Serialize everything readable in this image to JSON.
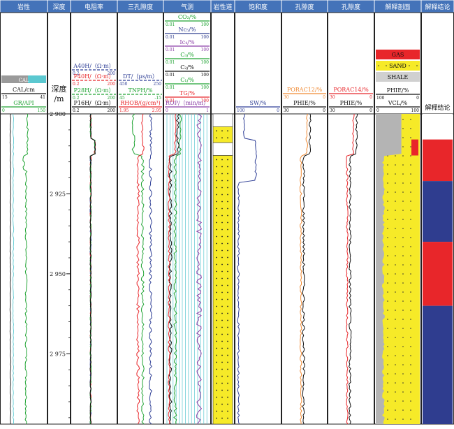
{
  "columns": [
    {
      "id": "lith",
      "title": "岩性"
    },
    {
      "id": "depth",
      "title": "深度"
    },
    {
      "id": "res",
      "title": "电阻率"
    },
    {
      "id": "por3",
      "title": "三孔隙度"
    },
    {
      "id": "gas",
      "title": "气测"
    },
    {
      "id": "lithtrack",
      "title": "岩性道"
    },
    {
      "id": "sat",
      "title": "饱和度"
    },
    {
      "id": "poro1",
      "title": "孔隙度"
    },
    {
      "id": "poro2",
      "title": "孔隙度"
    },
    {
      "id": "profile",
      "title": "解释剖面"
    },
    {
      "id": "concl",
      "title": "解释结论"
    }
  ],
  "depth_track": {
    "label_line1": "深度",
    "label_line2": "/m",
    "ticks": [
      "2 900",
      "2 925",
      "2 950",
      "2 975"
    ]
  },
  "lith_header": {
    "cal_box": "CAL",
    "cal_curve": {
      "name": "CAL/cm",
      "min": "15",
      "max": "41"
    },
    "gr_curve": {
      "name": "GR/API",
      "min": "0",
      "max": "150"
    }
  },
  "res_header": [
    {
      "name": "A40H/（Ω·m）",
      "min": "0.2",
      "max": "200"
    },
    {
      "name": "P40H/（Ω·m）",
      "min": "0.2",
      "max": "200"
    },
    {
      "name": "P28H/（Ω·m）",
      "min": "0.2",
      "max": "200"
    },
    {
      "name": "P16H/（Ω·m）",
      "min": "0.2",
      "max": "200"
    }
  ],
  "por3_header": [
    {
      "name": "DT/（μs/m）",
      "min": "450",
      "max": "250"
    },
    {
      "name": "TNPH/%",
      "min": "45",
      "max": "-15"
    },
    {
      "name": "RHOB/(g/cm³)",
      "min": "1.95",
      "max": "2.95"
    }
  ],
  "gas_header": [
    {
      "name": "CO₂/%",
      "min": "0.01",
      "max": "100"
    },
    {
      "name": "Nc₅/%",
      "min": "0.01",
      "max": "100"
    },
    {
      "name": "Ic₄/%",
      "min": "0.01",
      "max": "100"
    },
    {
      "name": "C₃/%",
      "min": "0.01",
      "max": "100"
    },
    {
      "name": "C₂/%",
      "min": "0.01",
      "max": "100"
    },
    {
      "name": "C₁/%",
      "min": "0.01",
      "max": "100"
    },
    {
      "name": "TG/%",
      "min": "0.01",
      "max": "100"
    },
    {
      "name": "ROP/（min/m）",
      "min": "0",
      "max": "1"
    }
  ],
  "sat_header": {
    "name": "SW/%",
    "min": "100",
    "max": "0"
  },
  "poro1_header": [
    {
      "name": "PORAC12/%",
      "min": "30",
      "max": "0"
    },
    {
      "name": "PHIE/%",
      "min": "30",
      "max": "0"
    }
  ],
  "poro2_header": [
    {
      "name": "PORAC14/%",
      "min": "30",
      "max": "0"
    },
    {
      "name": "PHIE/%",
      "min": "30",
      "max": "0"
    }
  ],
  "profile_header": {
    "legend": [
      "GAS",
      "SAND",
      "SHALE"
    ],
    "phie": {
      "name": "PHIE/%",
      "min": "100",
      "max": "0"
    },
    "vcl": {
      "name": "VCL/%",
      "min": "0",
      "max": "100"
    }
  },
  "concl_header": {
    "label": "解释结论"
  },
  "colors": {
    "header_bg": "#4473b9",
    "green": "#21a434",
    "red": "#e8262a",
    "blue": "#2f3f96",
    "black": "#111111",
    "purple": "#8b3fa7",
    "orange": "#f08a33",
    "cyan": "#5bc8d0",
    "yellow": "#f6ea28",
    "navy": "#2f3d8f",
    "gray": "#b4b4b4"
  },
  "chart_data": {
    "type": "line",
    "y_axis": {
      "label": "深度/m",
      "range": [
        2900,
        2997
      ],
      "ticks": [
        2900,
        2925,
        2950,
        2975
      ],
      "reversed": true
    },
    "interpretation_zones": [
      {
        "top": 2900,
        "bottom": 2908,
        "conclusion": "none"
      },
      {
        "top": 2908,
        "bottom": 2921,
        "conclusion": "gas"
      },
      {
        "top": 2921,
        "bottom": 2940,
        "conclusion": "water"
      },
      {
        "top": 2940,
        "bottom": 2960,
        "conclusion": "gas"
      },
      {
        "top": 2960,
        "bottom": 2997,
        "conclusion": "water"
      }
    ],
    "lithology": [
      {
        "top": 2900,
        "bottom": 2904,
        "type": "shale"
      },
      {
        "top": 2904,
        "bottom": 2909,
        "type": "sand"
      },
      {
        "top": 2909,
        "bottom": 2913,
        "type": "shale"
      },
      {
        "top": 2913,
        "bottom": 2997,
        "type": "sand"
      }
    ]
  }
}
